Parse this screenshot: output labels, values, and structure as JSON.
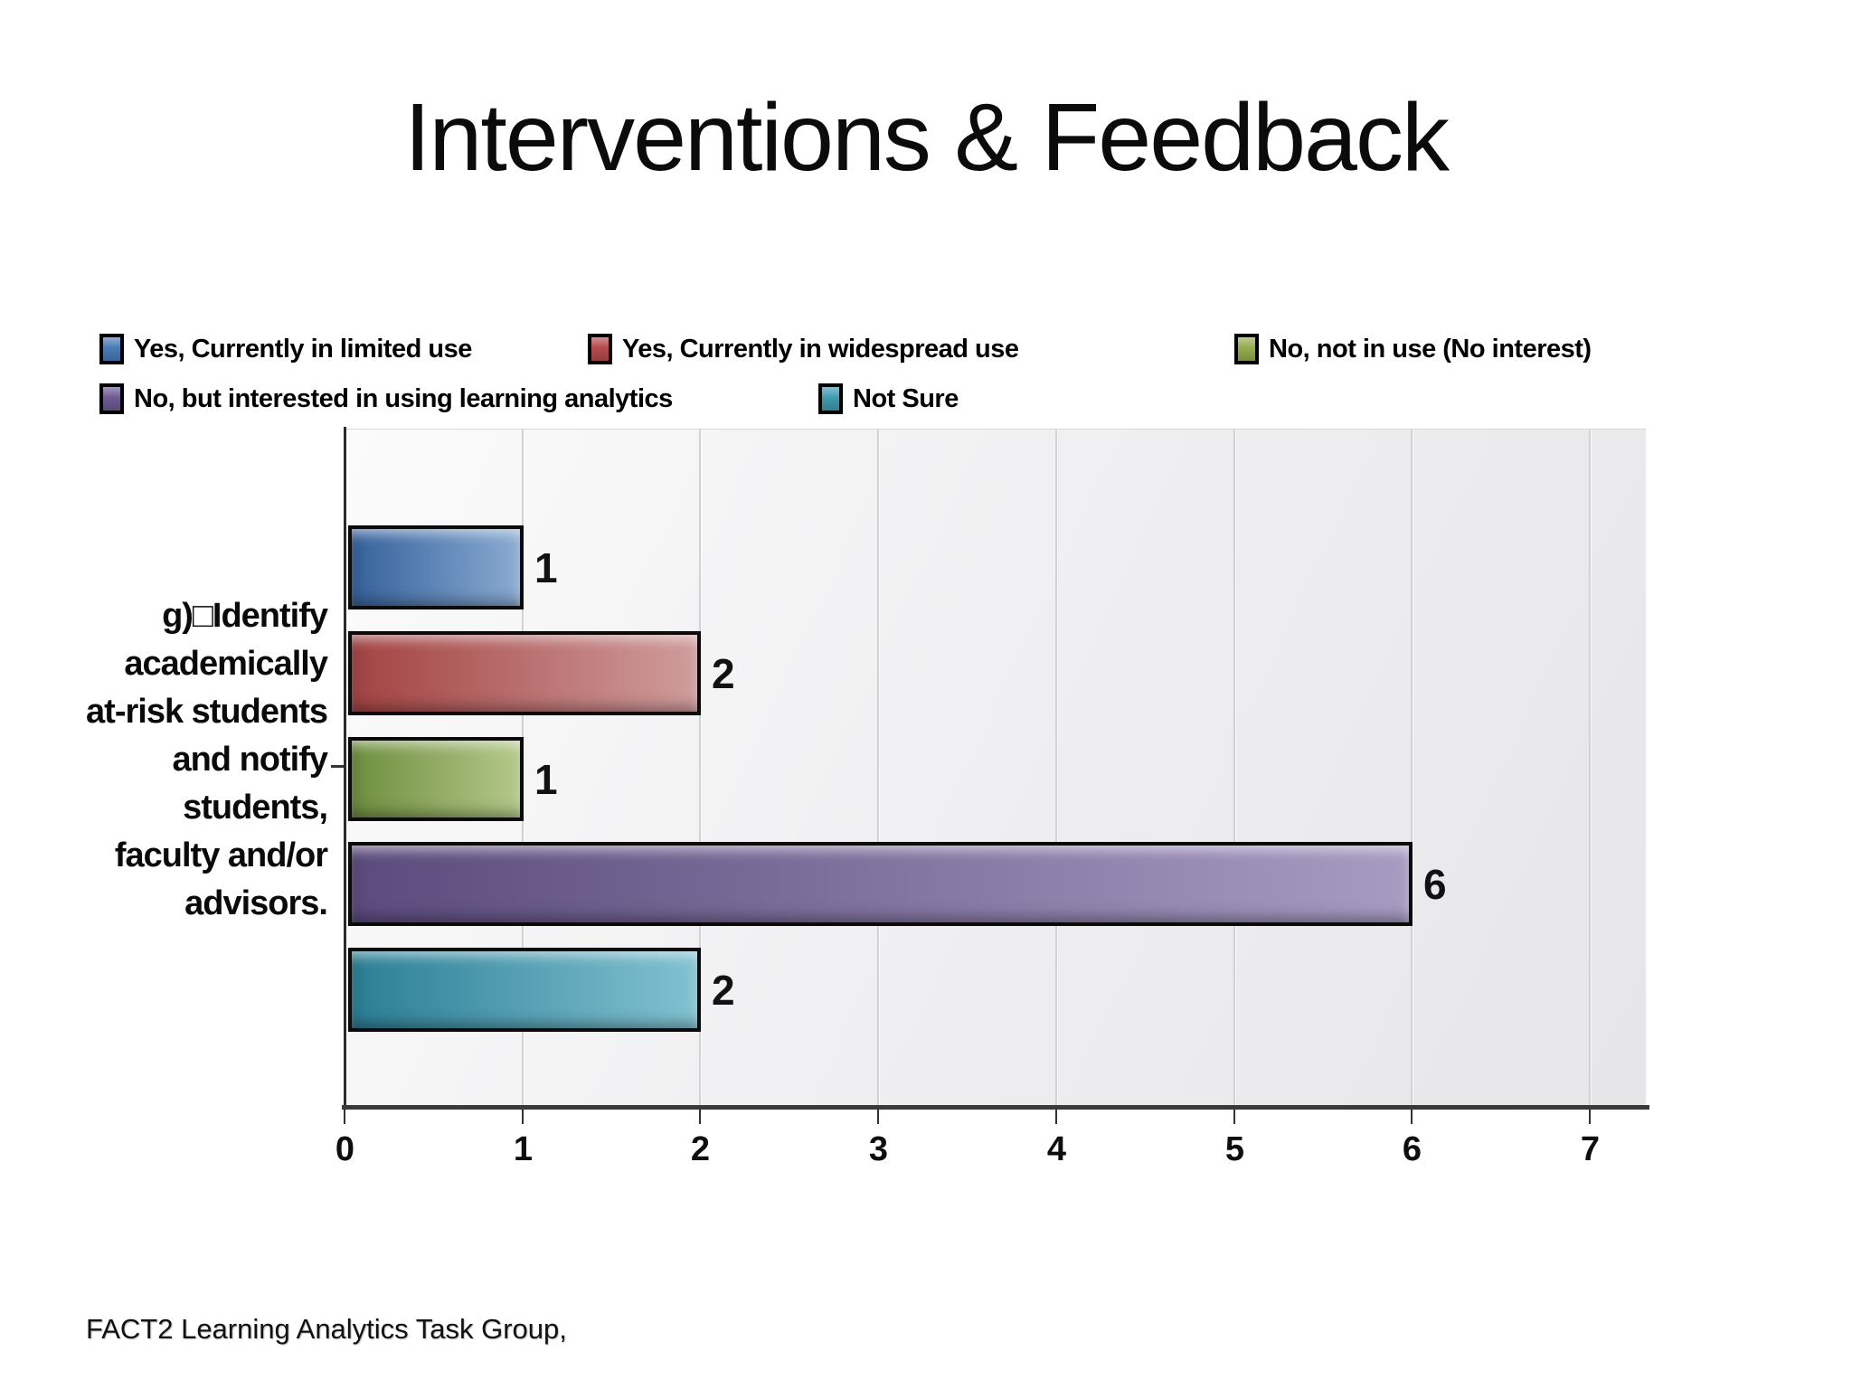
{
  "slide": {
    "title": "Interventions & Feedback",
    "footer": "FACT2 Learning Analytics Task Group,"
  },
  "chart_data": {
    "type": "bar",
    "orientation": "horizontal",
    "title": "",
    "xlabel": "",
    "ylabel": "",
    "category": "g) Identify academically at-risk students and notify students, faculty and/or advisors.",
    "category_lines": [
      "g)□Identify",
      "academically",
      "at-risk students",
      "and notify",
      "students,",
      "faculty and/or",
      "advisors."
    ],
    "series": [
      {
        "name": "Yes, Currently in limited use",
        "value": 1,
        "bar_color_left": "#35619b",
        "bar_color_right": "#8aabd2",
        "swatch_color": "#4a7ab5"
      },
      {
        "name": "Yes, Currently in widespread use",
        "value": 2,
        "bar_color_left": "#a34343",
        "bar_color_right": "#d09c9c",
        "swatch_color": "#b64a4a"
      },
      {
        "name": "No, not in use (No interest)",
        "value": 1,
        "bar_color_left": "#6e8e3e",
        "bar_color_right": "#b4c88a",
        "swatch_color": "#97ab4e"
      },
      {
        "name": "No, but interested in using learning analytics",
        "value": 6,
        "bar_color_left": "#5c4a7c",
        "bar_color_right": "#a79bc2",
        "swatch_color": "#6d5a92"
      },
      {
        "name": "Not Sure",
        "value": 2,
        "bar_color_left": "#2b7e96",
        "bar_color_right": "#82c2d1",
        "swatch_color": "#3f9ab0"
      }
    ],
    "value_labels": [
      "1",
      "2",
      "1",
      "6",
      "2"
    ],
    "xlim": [
      0,
      7.3
    ],
    "xticks": [
      "0",
      "1",
      "2",
      "3",
      "4",
      "5",
      "6",
      "7"
    ],
    "grid": "vertical",
    "legend_position": "top",
    "axis_color": "#333333",
    "value_label_color": "#111111"
  }
}
